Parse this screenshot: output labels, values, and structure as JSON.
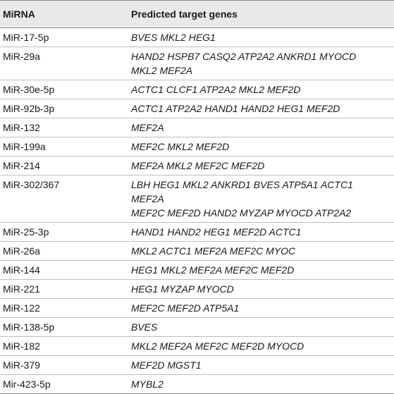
{
  "header": {
    "col1": "MiRNA",
    "col2": "Predicted target genes"
  },
  "rows": [
    {
      "mirna": "MiR-17-5p",
      "genes": [
        "BVES MKL2 HEG1"
      ]
    },
    {
      "mirna": "MiR-29a",
      "genes": [
        "HAND2 HSPB7 CASQ2 ATP2A2 ANKRD1 MYOCD",
        "MKL2 MEF2A"
      ]
    },
    {
      "mirna": "MiR-30e-5p",
      "genes": [
        "ACTC1 CLCF1 ATP2A2 MKL2 MEF2D"
      ]
    },
    {
      "mirna": "MiR-92b-3p",
      "genes": [
        "ACTC1 ATP2A2 HAND1 HAND2 HEG1 MEF2D"
      ]
    },
    {
      "mirna": "MiR-132",
      "genes": [
        "MEF2A"
      ]
    },
    {
      "mirna": "MiR-199a",
      "genes": [
        "MEF2C MKL2 MEF2D"
      ]
    },
    {
      "mirna": "MiR-214",
      "genes": [
        "MEF2A MKL2 MEF2C MEF2D"
      ]
    },
    {
      "mirna": "MiR-302/367",
      "genes": [
        "LBH HEG1 MKL2 ANKRD1 BVES ATP5A1 ACTC1",
        "MEF2A",
        "MEF2C MEF2D HAND2 MYZAP MYOCD ATP2A2"
      ]
    },
    {
      "mirna": "MiR-25-3p",
      "genes": [
        "HAND1 HAND2 HEG1 MEF2D ACTC1"
      ]
    },
    {
      "mirna": "MiR-26a",
      "genes": [
        "MKL2 ACTC1 MEF2A MEF2C MYOC"
      ]
    },
    {
      "mirna": "MiR-144",
      "genes": [
        "HEG1 MKL2 MEF2A MEF2C MEF2D"
      ]
    },
    {
      "mirna": "MiR-221",
      "genes": [
        "HEG1 MYZAP MYOCD"
      ]
    },
    {
      "mirna": "MiR-122",
      "genes": [
        "MEF2C MEF2D ATP5A1"
      ]
    },
    {
      "mirna": "MiR-138-5p",
      "genes": [
        "BVES"
      ]
    },
    {
      "mirna": "MiR-182",
      "genes": [
        "MKL2 MEF2A MEF2C MEF2D MYOCD"
      ]
    },
    {
      "mirna": "MiR-379",
      "genes": [
        "MEF2D MGST1"
      ]
    },
    {
      "mirna": "Mir-423-5p",
      "genes": [
        "MYBL2"
      ]
    }
  ]
}
